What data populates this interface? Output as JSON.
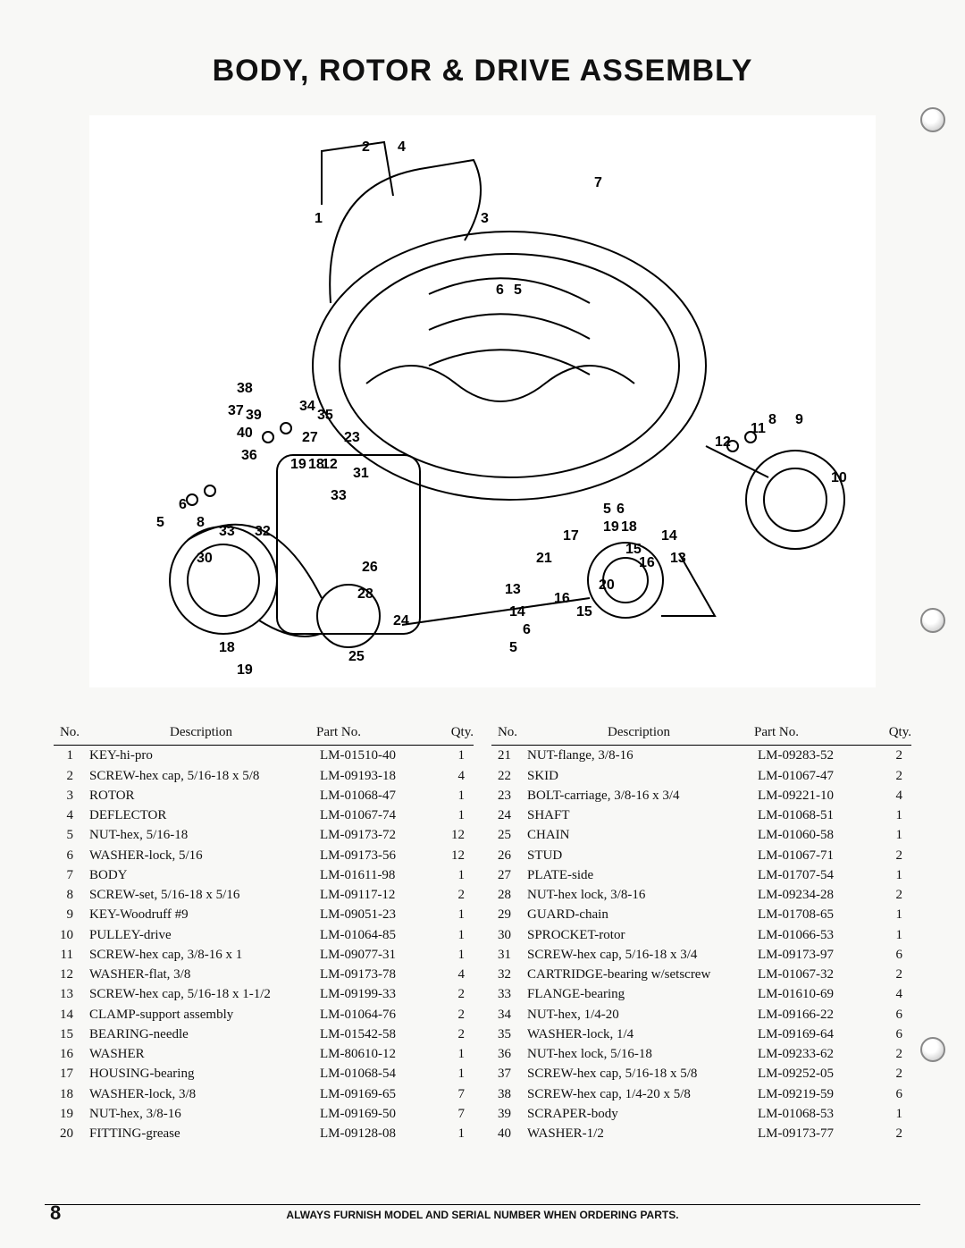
{
  "title": "BODY, ROTOR & DRIVE  ASSEMBLY",
  "page_number": "8",
  "footer": "ALWAYS FURNISH MODEL AND SERIAL NUMBER WHEN ORDERING PARTS.",
  "table_headers": {
    "no": "No.",
    "desc": "Description",
    "pn": "Part No.",
    "qty": "Qty."
  },
  "parts_left": [
    {
      "no": "1",
      "desc": "KEY-hi-pro",
      "pn": "LM-01510-40",
      "qty": "1"
    },
    {
      "no": "2",
      "desc": "SCREW-hex cap, 5/16-18 x 5/8",
      "pn": "LM-09193-18",
      "qty": "4"
    },
    {
      "no": "3",
      "desc": "ROTOR",
      "pn": "LM-01068-47",
      "qty": "1"
    },
    {
      "no": "4",
      "desc": "DEFLECTOR",
      "pn": "LM-01067-74",
      "qty": "1"
    },
    {
      "no": "5",
      "desc": "NUT-hex, 5/16-18",
      "pn": "LM-09173-72",
      "qty": "12"
    },
    {
      "no": "6",
      "desc": "WASHER-lock, 5/16",
      "pn": "LM-09173-56",
      "qty": "12"
    },
    {
      "no": "7",
      "desc": "BODY",
      "pn": "LM-01611-98",
      "qty": "1"
    },
    {
      "no": "8",
      "desc": "SCREW-set, 5/16-18 x 5/16",
      "pn": "LM-09117-12",
      "qty": "2"
    },
    {
      "no": "9",
      "desc": "KEY-Woodruff #9",
      "pn": "LM-09051-23",
      "qty": "1"
    },
    {
      "no": "10",
      "desc": "PULLEY-drive",
      "pn": "LM-01064-85",
      "qty": "1"
    },
    {
      "no": "11",
      "desc": "SCREW-hex cap, 3/8-16 x 1",
      "pn": "LM-09077-31",
      "qty": "1"
    },
    {
      "no": "12",
      "desc": "WASHER-flat, 3/8",
      "pn": "LM-09173-78",
      "qty": "4"
    },
    {
      "no": "13",
      "desc": "SCREW-hex cap, 5/16-18 x 1-1/2",
      "pn": "LM-09199-33",
      "qty": "2"
    },
    {
      "no": "14",
      "desc": "CLAMP-support assembly",
      "pn": "LM-01064-76",
      "qty": "2"
    },
    {
      "no": "15",
      "desc": "BEARING-needle",
      "pn": "LM-01542-58",
      "qty": "2"
    },
    {
      "no": "16",
      "desc": "WASHER",
      "pn": "LM-80610-12",
      "qty": "1"
    },
    {
      "no": "17",
      "desc": "HOUSING-bearing",
      "pn": "LM-01068-54",
      "qty": "1"
    },
    {
      "no": "18",
      "desc": "WASHER-lock, 3/8",
      "pn": "LM-09169-65",
      "qty": "7"
    },
    {
      "no": "19",
      "desc": "NUT-hex, 3/8-16",
      "pn": "LM-09169-50",
      "qty": "7"
    },
    {
      "no": "20",
      "desc": "FITTING-grease",
      "pn": "LM-09128-08",
      "qty": "1"
    }
  ],
  "parts_right": [
    {
      "no": "21",
      "desc": "NUT-flange, 3/8-16",
      "pn": "LM-09283-52",
      "qty": "2"
    },
    {
      "no": "22",
      "desc": "SKID",
      "pn": "LM-01067-47",
      "qty": "2"
    },
    {
      "no": "23",
      "desc": "BOLT-carriage, 3/8-16 x 3/4",
      "pn": "LM-09221-10",
      "qty": "4"
    },
    {
      "no": "24",
      "desc": "SHAFT",
      "pn": "LM-01068-51",
      "qty": "1"
    },
    {
      "no": "25",
      "desc": "CHAIN",
      "pn": "LM-01060-58",
      "qty": "1"
    },
    {
      "no": "26",
      "desc": "STUD",
      "pn": "LM-01067-71",
      "qty": "2"
    },
    {
      "no": "27",
      "desc": "PLATE-side",
      "pn": "LM-01707-54",
      "qty": "1"
    },
    {
      "no": "28",
      "desc": "NUT-hex lock, 3/8-16",
      "pn": "LM-09234-28",
      "qty": "2"
    },
    {
      "no": "29",
      "desc": "GUARD-chain",
      "pn": "LM-01708-65",
      "qty": "1"
    },
    {
      "no": "30",
      "desc": "SPROCKET-rotor",
      "pn": "LM-01066-53",
      "qty": "1"
    },
    {
      "no": "31",
      "desc": "SCREW-hex cap, 5/16-18 x 3/4",
      "pn": "LM-09173-97",
      "qty": "6"
    },
    {
      "no": "32",
      "desc": "CARTRIDGE-bearing w/setscrew",
      "pn": "LM-01067-32",
      "qty": "2"
    },
    {
      "no": "33",
      "desc": "FLANGE-bearing",
      "pn": "LM-01610-69",
      "qty": "4"
    },
    {
      "no": "34",
      "desc": "NUT-hex, 1/4-20",
      "pn": "LM-09166-22",
      "qty": "6"
    },
    {
      "no": "35",
      "desc": "WASHER-lock, 1/4",
      "pn": "LM-09169-64",
      "qty": "6"
    },
    {
      "no": "36",
      "desc": "NUT-hex lock, 5/16-18",
      "pn": "LM-09233-62",
      "qty": "2"
    },
    {
      "no": "37",
      "desc": "SCREW-hex cap, 5/16-18 x 5/8",
      "pn": "LM-09252-05",
      "qty": "2"
    },
    {
      "no": "38",
      "desc": "SCREW-hex cap, 1/4-20 x 5/8",
      "pn": "LM-09219-59",
      "qty": "6"
    },
    {
      "no": "39",
      "desc": "SCRAPER-body",
      "pn": "LM-01068-53",
      "qty": "1"
    },
    {
      "no": "40",
      "desc": "WASHER-1/2",
      "pn": "LM-09173-77",
      "qty": "2"
    }
  ],
  "diagram_callouts": [
    "1",
    "2",
    "3",
    "4",
    "5",
    "6",
    "7",
    "8",
    "9",
    "10",
    "11",
    "12",
    "13",
    "14",
    "15",
    "16",
    "17",
    "18",
    "19",
    "20",
    "21",
    "23",
    "24",
    "25",
    "26",
    "27",
    "28",
    "30",
    "31",
    "32",
    "33",
    "34",
    "35",
    "36",
    "37",
    "38",
    "39",
    "40"
  ]
}
